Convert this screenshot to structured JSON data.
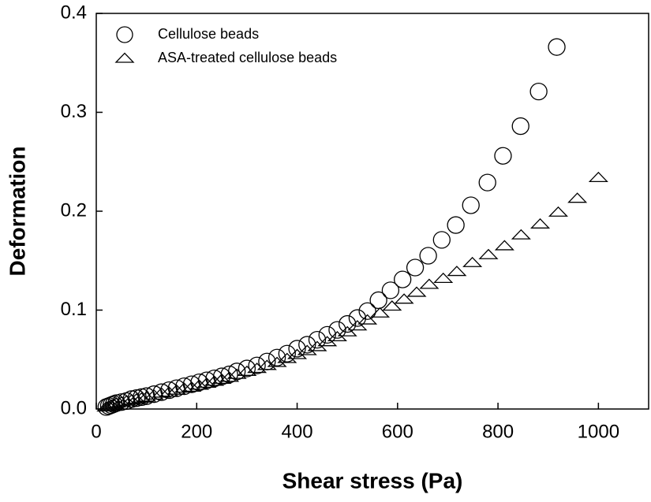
{
  "chart_data": {
    "type": "scatter",
    "xlabel": "Shear stress (Pa)",
    "ylabel": "Deformation",
    "xlim": [
      0,
      1100
    ],
    "ylim": [
      0,
      0.4
    ],
    "xticks": [
      0,
      200,
      400,
      600,
      800,
      1000
    ],
    "yticks": [
      {
        "value": 0,
        "label": "0.0"
      },
      0.1,
      0.2,
      0.3,
      0.4
    ],
    "legend": "upper left",
    "series": [
      {
        "name": "Cellulose beads",
        "marker": "circle",
        "color": "#000000",
        "x": [
          20,
          25,
          30,
          35,
          40,
          50,
          60,
          70,
          80,
          90,
          100,
          115,
          130,
          145,
          160,
          175,
          190,
          205,
          220,
          235,
          250,
          265,
          280,
          300,
          320,
          340,
          360,
          380,
          400,
          420,
          440,
          460,
          480,
          500,
          520,
          540,
          562,
          586,
          610,
          635,
          661,
          688,
          716,
          746,
          779,
          810,
          845,
          881,
          917
        ],
        "values": [
          0.002,
          0.003,
          0.004,
          0.005,
          0.006,
          0.007,
          0.008,
          0.01,
          0.011,
          0.012,
          0.013,
          0.015,
          0.017,
          0.019,
          0.021,
          0.023,
          0.025,
          0.027,
          0.029,
          0.031,
          0.033,
          0.035,
          0.038,
          0.041,
          0.044,
          0.048,
          0.052,
          0.056,
          0.061,
          0.065,
          0.07,
          0.075,
          0.08,
          0.086,
          0.092,
          0.099,
          0.11,
          0.12,
          0.131,
          0.143,
          0.155,
          0.171,
          0.186,
          0.206,
          0.229,
          0.256,
          0.286,
          0.321,
          0.366
        ]
      },
      {
        "name": "ASA-treated cellulose beads",
        "marker": "triangle",
        "color": "#000000",
        "x": [
          20,
          25,
          30,
          35,
          40,
          50,
          60,
          70,
          80,
          90,
          100,
          115,
          130,
          145,
          160,
          175,
          190,
          205,
          220,
          235,
          250,
          265,
          280,
          300,
          320,
          340,
          360,
          380,
          400,
          420,
          440,
          460,
          480,
          500,
          520,
          540,
          565,
          589,
          613,
          638,
          663,
          691,
          718,
          749,
          781,
          813,
          846,
          884,
          920,
          958,
          1000
        ],
        "values": [
          0.002,
          0.003,
          0.004,
          0.005,
          0.006,
          0.007,
          0.008,
          0.009,
          0.01,
          0.011,
          0.012,
          0.014,
          0.016,
          0.017,
          0.019,
          0.021,
          0.022,
          0.024,
          0.026,
          0.028,
          0.03,
          0.032,
          0.035,
          0.038,
          0.041,
          0.044,
          0.047,
          0.051,
          0.055,
          0.059,
          0.063,
          0.068,
          0.073,
          0.078,
          0.084,
          0.09,
          0.097,
          0.104,
          0.111,
          0.118,
          0.126,
          0.132,
          0.139,
          0.148,
          0.156,
          0.165,
          0.176,
          0.187,
          0.199,
          0.213,
          0.234
        ]
      }
    ]
  }
}
